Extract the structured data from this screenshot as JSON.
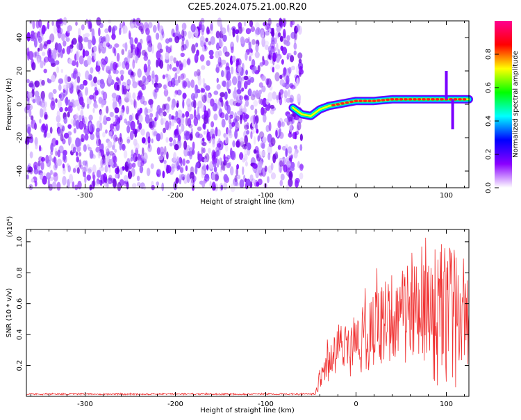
{
  "title": "C2E5.2024.075.21.00.R20",
  "chart_data": [
    {
      "type": "heatmap",
      "name": "spectrogram",
      "xlabel": "Height of straight line (km)",
      "ylabel": "Frequency (Hz)",
      "xlim": [
        -365,
        125
      ],
      "ylim": [
        -50,
        50
      ],
      "xticks": [
        -300,
        -200,
        -100,
        0,
        100
      ],
      "xtick_labels": [
        "-300",
        "-200",
        "-100",
        "0",
        "100"
      ],
      "yticks": [
        -40,
        -20,
        0,
        20,
        40
      ],
      "ytick_labels": [
        "-40",
        "-20",
        "0",
        "20",
        "40"
      ],
      "noise_region_x": [
        -365,
        -60
      ],
      "signal_trace": {
        "x": [
          -70,
          -60,
          -50,
          -40,
          -30,
          -20,
          -10,
          0,
          20,
          40,
          60,
          80,
          100,
          110,
          125
        ],
        "y": [
          -2,
          -6,
          -7,
          -3,
          -1,
          0,
          1,
          2,
          2,
          3,
          3,
          3,
          3,
          3,
          3
        ]
      },
      "colorbar": {
        "label": "Normalized spectral amplitude",
        "range": [
          0,
          1
        ],
        "ticks": [
          0.0,
          0.2,
          0.4,
          0.6,
          0.8
        ],
        "tick_labels": [
          "0.0",
          "0.2",
          "0.4",
          "0.6",
          "0.8"
        ],
        "colors": [
          "#ffffff",
          "#8a00ff",
          "#0000ff",
          "#00ffff",
          "#00ff00",
          "#ffff00",
          "#ff0000",
          "#ff0090"
        ]
      }
    },
    {
      "type": "line",
      "name": "snr",
      "xlabel": "Height of straight line (km)",
      "ylabel": "SNR (10 * v/v)",
      "scale_label": "(x10⁴)",
      "xlim": [
        -365,
        125
      ],
      "ylim": [
        0,
        1.08
      ],
      "xticks": [
        -300,
        -200,
        -100,
        0,
        100
      ],
      "xtick_labels": [
        "-300",
        "-200",
        "-100",
        "0",
        "100"
      ],
      "yticks": [
        0.2,
        0.4,
        0.6,
        0.8,
        1.0
      ],
      "ytick_labels": [
        "0.2",
        "0.4",
        "0.6",
        "0.8",
        "1.0"
      ],
      "color": "#f03030",
      "envelope": {
        "x": [
          -365,
          -45,
          -40,
          -30,
          -20,
          -10,
          0,
          10,
          20,
          30,
          40,
          50,
          60,
          70,
          80,
          90,
          100,
          110,
          125
        ],
        "y": [
          0.015,
          0.015,
          0.1,
          0.22,
          0.3,
          0.3,
          0.35,
          0.38,
          0.42,
          0.48,
          0.52,
          0.53,
          0.54,
          0.55,
          0.55,
          0.53,
          0.55,
          0.5,
          0.5
        ]
      }
    }
  ]
}
